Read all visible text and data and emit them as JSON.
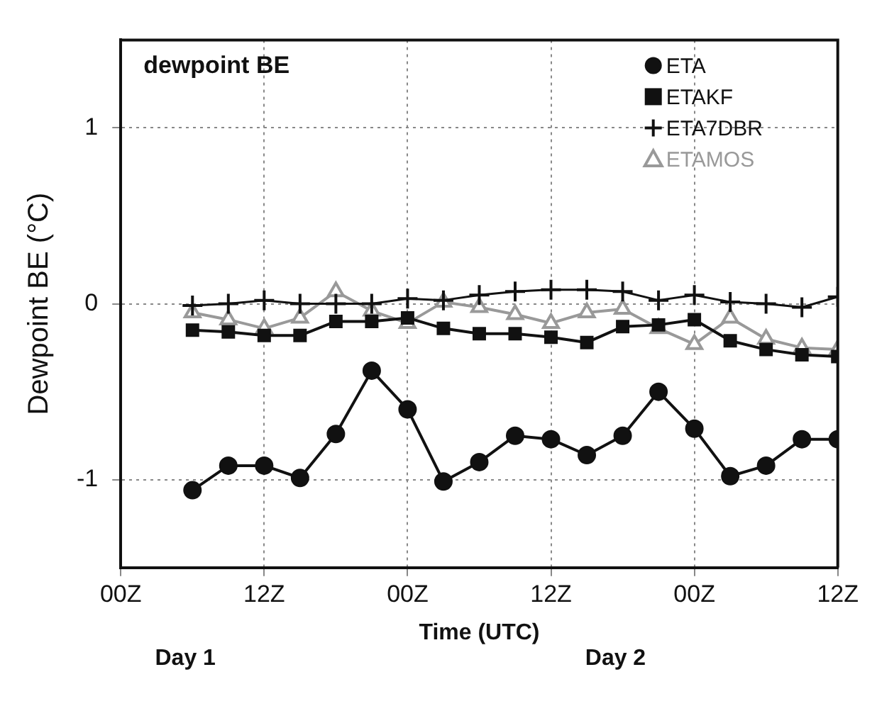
{
  "chart_data": {
    "type": "line",
    "title": "dewpoint BE",
    "xlabel": "Time (UTC)",
    "ylabel": "Dewpoint BE (°C)",
    "x": [
      "--01-01T06:00",
      "--01-01T09:00",
      "--01-01T12:00",
      "--01-01T15:00",
      "--01-01T18:00",
      "--01-01T21:00",
      "--01-02T00:00",
      "--01-02T03:00",
      "--01-02T06:00",
      "--01-02T09:00",
      "--01-02T12:00",
      "--01-02T15:00",
      "--01-02T18:00",
      "--01-02T21:00",
      "--01-03T00:00",
      "--01-03T03:00",
      "--01-03T06:00",
      "--01-03T09:00",
      "--01-03T12:00"
    ],
    "xlim": [
      "--01-01T00:00",
      "--01-03T12:00"
    ],
    "xticks": [
      {
        "value": "--01-01T00:00",
        "label": "00Z"
      },
      {
        "value": "--01-01T12:00",
        "label": "12Z"
      },
      {
        "value": "--01-02T00:00",
        "label": "00Z"
      },
      {
        "value": "--01-02T12:00",
        "label": "12Z"
      },
      {
        "value": "--01-03T00:00",
        "label": "00Z"
      },
      {
        "value": "--01-03T12:00",
        "label": "12Z"
      }
    ],
    "ylim": [
      -1.5,
      1.5
    ],
    "yticks": [
      -1,
      0,
      1
    ],
    "grid": true,
    "legend": "top right",
    "annotations": [
      "Day 1",
      "Day 2"
    ],
    "series": [
      {
        "name": "ETA",
        "color": "#111111",
        "marker": "circle",
        "values": [
          -1.06,
          -0.92,
          -0.92,
          -0.99,
          -0.74,
          -0.38,
          -0.6,
          -1.01,
          -0.9,
          -0.75,
          -0.77,
          -0.86,
          -0.75,
          -0.5,
          -0.71,
          -0.98,
          -0.92,
          -0.77,
          -0.77
        ]
      },
      {
        "name": "ETAKF",
        "color": "#111111",
        "marker": "square",
        "values": [
          -0.15,
          -0.16,
          -0.18,
          -0.18,
          -0.1,
          -0.1,
          -0.08,
          -0.14,
          -0.17,
          -0.17,
          -0.19,
          -0.22,
          -0.13,
          -0.12,
          -0.09,
          -0.21,
          -0.26,
          -0.29,
          -0.3
        ]
      },
      {
        "name": "ETA7DBR",
        "color": "#111111",
        "marker": "cross",
        "values": [
          -0.01,
          0,
          0.02,
          0,
          0,
          0,
          0.03,
          0.02,
          0.05,
          0.07,
          0.08,
          0.08,
          0.07,
          0.02,
          0.05,
          0.01,
          0,
          -0.02,
          0.04
        ]
      },
      {
        "name": "ETAMOS",
        "color": "#999999",
        "marker": "triangle",
        "values": [
          -0.05,
          -0.09,
          -0.14,
          -0.08,
          0.07,
          -0.04,
          -0.11,
          0.01,
          -0.02,
          -0.06,
          -0.11,
          -0.05,
          -0.03,
          -0.14,
          -0.23,
          -0.08,
          -0.2,
          -0.25,
          -0.26
        ]
      }
    ]
  }
}
